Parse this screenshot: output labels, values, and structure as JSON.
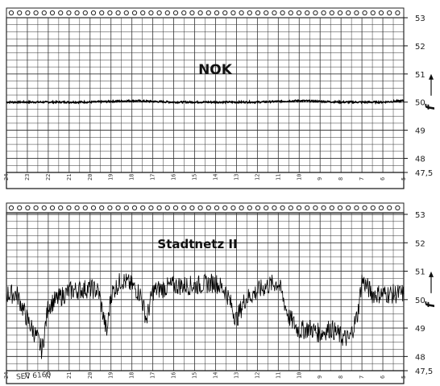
{
  "chart_data": [
    {
      "type": "line",
      "title": "NOK",
      "ylabel": "f",
      "ylim": [
        47.5,
        53
      ],
      "yticks": [
        "53",
        "52",
        "51",
        "50",
        "49",
        "48",
        "47,5"
      ],
      "xticks": [
        "24",
        "23",
        "22",
        "21",
        "20",
        "19",
        "18",
        "17",
        "16",
        "15",
        "14",
        "13",
        "12",
        "11",
        "10",
        "9",
        "8",
        "7",
        "6",
        "5"
      ],
      "series": [
        {
          "x": [
            24,
            22,
            20,
            18,
            16,
            14,
            12,
            10,
            8,
            6,
            5
          ],
          "y": [
            50.0,
            50.0,
            50.0,
            50.05,
            50.0,
            50.0,
            50.0,
            50.05,
            50.0,
            50.0,
            50.05
          ]
        }
      ]
    },
    {
      "type": "line",
      "title": "Stadtnetz II",
      "ylabel": "f",
      "ylim": [
        47.5,
        53
      ],
      "yticks": [
        "53",
        "52",
        "51",
        "50",
        "49",
        "48",
        "47,5"
      ],
      "xticks": [
        "24",
        "23",
        "22",
        "21",
        "20",
        "19",
        "18",
        "17",
        "16",
        "15",
        "14",
        "13",
        "12",
        "11",
        "10",
        "9",
        "8",
        "7",
        "6",
        "5"
      ],
      "series": [
        {
          "x": [
            24,
            23.5,
            23,
            22.5,
            22.3,
            22,
            21,
            20,
            19.6,
            19.2,
            19,
            18.5,
            18,
            17.6,
            17.3,
            17,
            16,
            15,
            14,
            13.5,
            13,
            12.6,
            12,
            11.5,
            11,
            10.5,
            10,
            9.5,
            9,
            8.5,
            8,
            7.6,
            7.2,
            7,
            6.5,
            6,
            5
          ],
          "y": [
            50.2,
            50.2,
            49.3,
            48.6,
            48.2,
            49.8,
            50.3,
            50.4,
            50.3,
            48.8,
            50.2,
            50.7,
            50.5,
            50.2,
            49.3,
            50.3,
            50.5,
            50.5,
            50.6,
            50.3,
            49.3,
            50.0,
            50.3,
            50.5,
            50.6,
            49.4,
            48.9,
            49.0,
            48.8,
            49.0,
            48.7,
            48.6,
            49.5,
            50.7,
            50.2,
            50.2,
            50.2
          ]
        }
      ]
    }
  ],
  "footer": {
    "stamp": "SEV 6160"
  }
}
